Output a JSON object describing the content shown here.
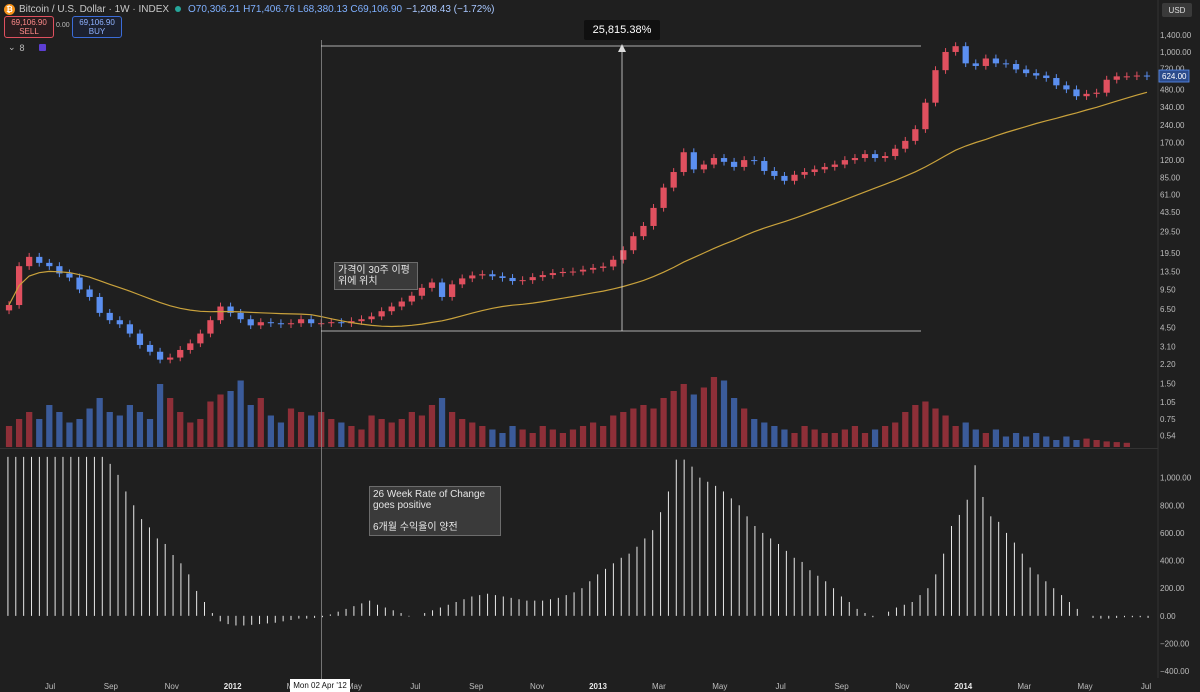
{
  "header": {
    "symbol": "Bitcoin / U.S. Dollar · 1W · INDEX",
    "ohlc": "O70,306.21 H71,406.76 L68,380.13 C69,106.90",
    "change": "−1,208.43 (−1.72%)",
    "sell_price": "69,106.90",
    "sell_label": "SELL",
    "buy_price": "69,106.90",
    "buy_label": "BUY",
    "spread": "0.00",
    "indicator_count": "8",
    "currency": "USD"
  },
  "annotations": {
    "measure_pct": "25,815.38%",
    "ma_note": "가격이 30주 이평\n위에 위치",
    "roc_note": "26 Week Rate of Change\ngoes positive\n\n6개월 수익율이 양전",
    "cursor_date": "Mon 02 Apr '12"
  },
  "colors": {
    "bull": "#e0505f",
    "bear": "#5b8ff0",
    "ma": "#c9a23c",
    "vol_bull": "#8e2f38",
    "vol_bear": "#3b5b9a",
    "roc": "#e8e8e8"
  },
  "chart_data": [
    {
      "type": "candlestick",
      "title": "Bitcoin / U.S. Dollar · 1W · INDEX",
      "scale": "log",
      "ylim": [
        0.45,
        1600
      ],
      "price_ticks": [
        "1,400.00",
        "1,000.00",
        "720.00",
        "480.00",
        "340.00",
        "240.00",
        "170.00",
        "120.00",
        "85.00",
        "61.00",
        "43.50",
        "29.50",
        "19.50",
        "13.50",
        "9.50",
        "6.50",
        "4.50",
        "3.10",
        "2.20",
        "1.50",
        "1.05",
        "0.75",
        "0.54"
      ],
      "price_tick_values": [
        1400,
        1000,
        720,
        480,
        340,
        240,
        170,
        120,
        85,
        61,
        43.5,
        29.5,
        19.5,
        13.5,
        9.5,
        6.5,
        4.5,
        3.1,
        2.2,
        1.5,
        1.05,
        0.75,
        0.54
      ],
      "last_price_label": "624.00",
      "last_price": 624,
      "x_tick_labels": [
        "Jul",
        "Sep",
        "Nov",
        "2012",
        "Mar",
        "May",
        "Jul",
        "Sep",
        "Nov",
        "2013",
        "Mar",
        "May",
        "Jul",
        "Sep",
        "Nov",
        "2014",
        "Mar",
        "May",
        "Jul"
      ],
      "closes": [
        7,
        15,
        18,
        16,
        15,
        13,
        12,
        9.5,
        8.2,
        6,
        5.2,
        4.8,
        4,
        3.2,
        2.8,
        2.4,
        2.5,
        2.9,
        3.3,
        4,
        5.2,
        6.8,
        6,
        5.3,
        4.7,
        5,
        4.9,
        4.8,
        4.9,
        5.3,
        4.9,
        4.9,
        5,
        4.9,
        5.1,
        5.3,
        5.6,
        6.2,
        6.8,
        7.5,
        8.4,
        9.8,
        10.9,
        8.2,
        10.5,
        11.8,
        12.5,
        12.8,
        12.3,
        11.9,
        11.2,
        11.4,
        12.1,
        12.6,
        13.1,
        13.4,
        13.5,
        14,
        14.5,
        14.9,
        17,
        20.5,
        27,
        33,
        47,
        70,
        95,
        140,
        100,
        110,
        125,
        116,
        105,
        120,
        118,
        97,
        88,
        80,
        90,
        95,
        100,
        105,
        110,
        120,
        125,
        135,
        125,
        130,
        150,
        175,
        220,
        370,
        700,
        1000,
        1120,
        800,
        760,
        880,
        800,
        790,
        710,
        660,
        630,
        600,
        520,
        480,
        420,
        440,
        450,
        580,
        620,
        620,
        630,
        620
      ],
      "ma_period_weeks": 30,
      "volume_relative": [
        0.3,
        0.4,
        0.5,
        0.4,
        0.6,
        0.5,
        0.35,
        0.4,
        0.55,
        0.7,
        0.5,
        0.45,
        0.6,
        0.5,
        0.4,
        0.9,
        0.7,
        0.5,
        0.35,
        0.4,
        0.65,
        0.75,
        0.8,
        0.95,
        0.6,
        0.7,
        0.45,
        0.35,
        0.55,
        0.5,
        0.45,
        0.5,
        0.4,
        0.35,
        0.3,
        0.25,
        0.45,
        0.4,
        0.35,
        0.4,
        0.5,
        0.45,
        0.6,
        0.7,
        0.5,
        0.4,
        0.35,
        0.3,
        0.25,
        0.2,
        0.3,
        0.25,
        0.2,
        0.3,
        0.25,
        0.2,
        0.25,
        0.3,
        0.35,
        0.3,
        0.45,
        0.5,
        0.55,
        0.6,
        0.55,
        0.7,
        0.8,
        0.9,
        0.75,
        0.85,
        1,
        0.95,
        0.7,
        0.55,
        0.4,
        0.35,
        0.3,
        0.25,
        0.2,
        0.3,
        0.25,
        0.2,
        0.2,
        0.25,
        0.3,
        0.2,
        0.25,
        0.3,
        0.35,
        0.5,
        0.6,
        0.65,
        0.55,
        0.45,
        0.3,
        0.35,
        0.25,
        0.2,
        0.25,
        0.15,
        0.2,
        0.15,
        0.2,
        0.15,
        0.1,
        0.15,
        0.1,
        0.12,
        0.1,
        0.08,
        0.07,
        0.06
      ]
    },
    {
      "type": "bar",
      "title": "26 Week Rate of Change",
      "ylim": [
        -450,
        1200
      ],
      "tick_labels": [
        "1,000.00",
        "800.00",
        "600.00",
        "400.00",
        "200.00",
        "0.00",
        "−200.00",
        "−400.00"
      ],
      "tick_values": [
        1000,
        800,
        600,
        400,
        200,
        0,
        -200,
        -400
      ],
      "values": [
        1150,
        1150,
        1150,
        1150,
        1150,
        1150,
        1150,
        1150,
        1150,
        1150,
        1150,
        1150,
        1150,
        1100,
        1020,
        900,
        800,
        700,
        640,
        560,
        520,
        440,
        380,
        300,
        180,
        100,
        20,
        -40,
        -60,
        -70,
        -70,
        -65,
        -60,
        -55,
        -50,
        -40,
        -30,
        -20,
        -20,
        -15,
        -10,
        10,
        30,
        50,
        70,
        90,
        110,
        80,
        60,
        40,
        20,
        -5,
        0,
        20,
        40,
        60,
        80,
        100,
        120,
        140,
        150,
        160,
        150,
        140,
        130,
        120,
        110,
        110,
        110,
        120,
        130,
        150,
        170,
        200,
        250,
        300,
        340,
        380,
        420,
        450,
        500,
        560,
        620,
        750,
        900,
        1130,
        1130,
        1080,
        1000,
        970,
        940,
        900,
        850,
        800,
        720,
        650,
        600,
        560,
        520,
        470,
        420,
        390,
        330,
        290,
        250,
        200,
        140,
        100,
        50,
        20,
        -10,
        0,
        30,
        60,
        80,
        100,
        150,
        200,
        300,
        450,
        650,
        730,
        840,
        1090,
        860,
        720,
        680,
        600,
        530,
        450,
        350,
        300,
        250,
        200,
        150,
        100,
        50,
        0,
        -15,
        -20,
        -20,
        -15,
        -10,
        -10,
        -10,
        -15
      ]
    }
  ]
}
